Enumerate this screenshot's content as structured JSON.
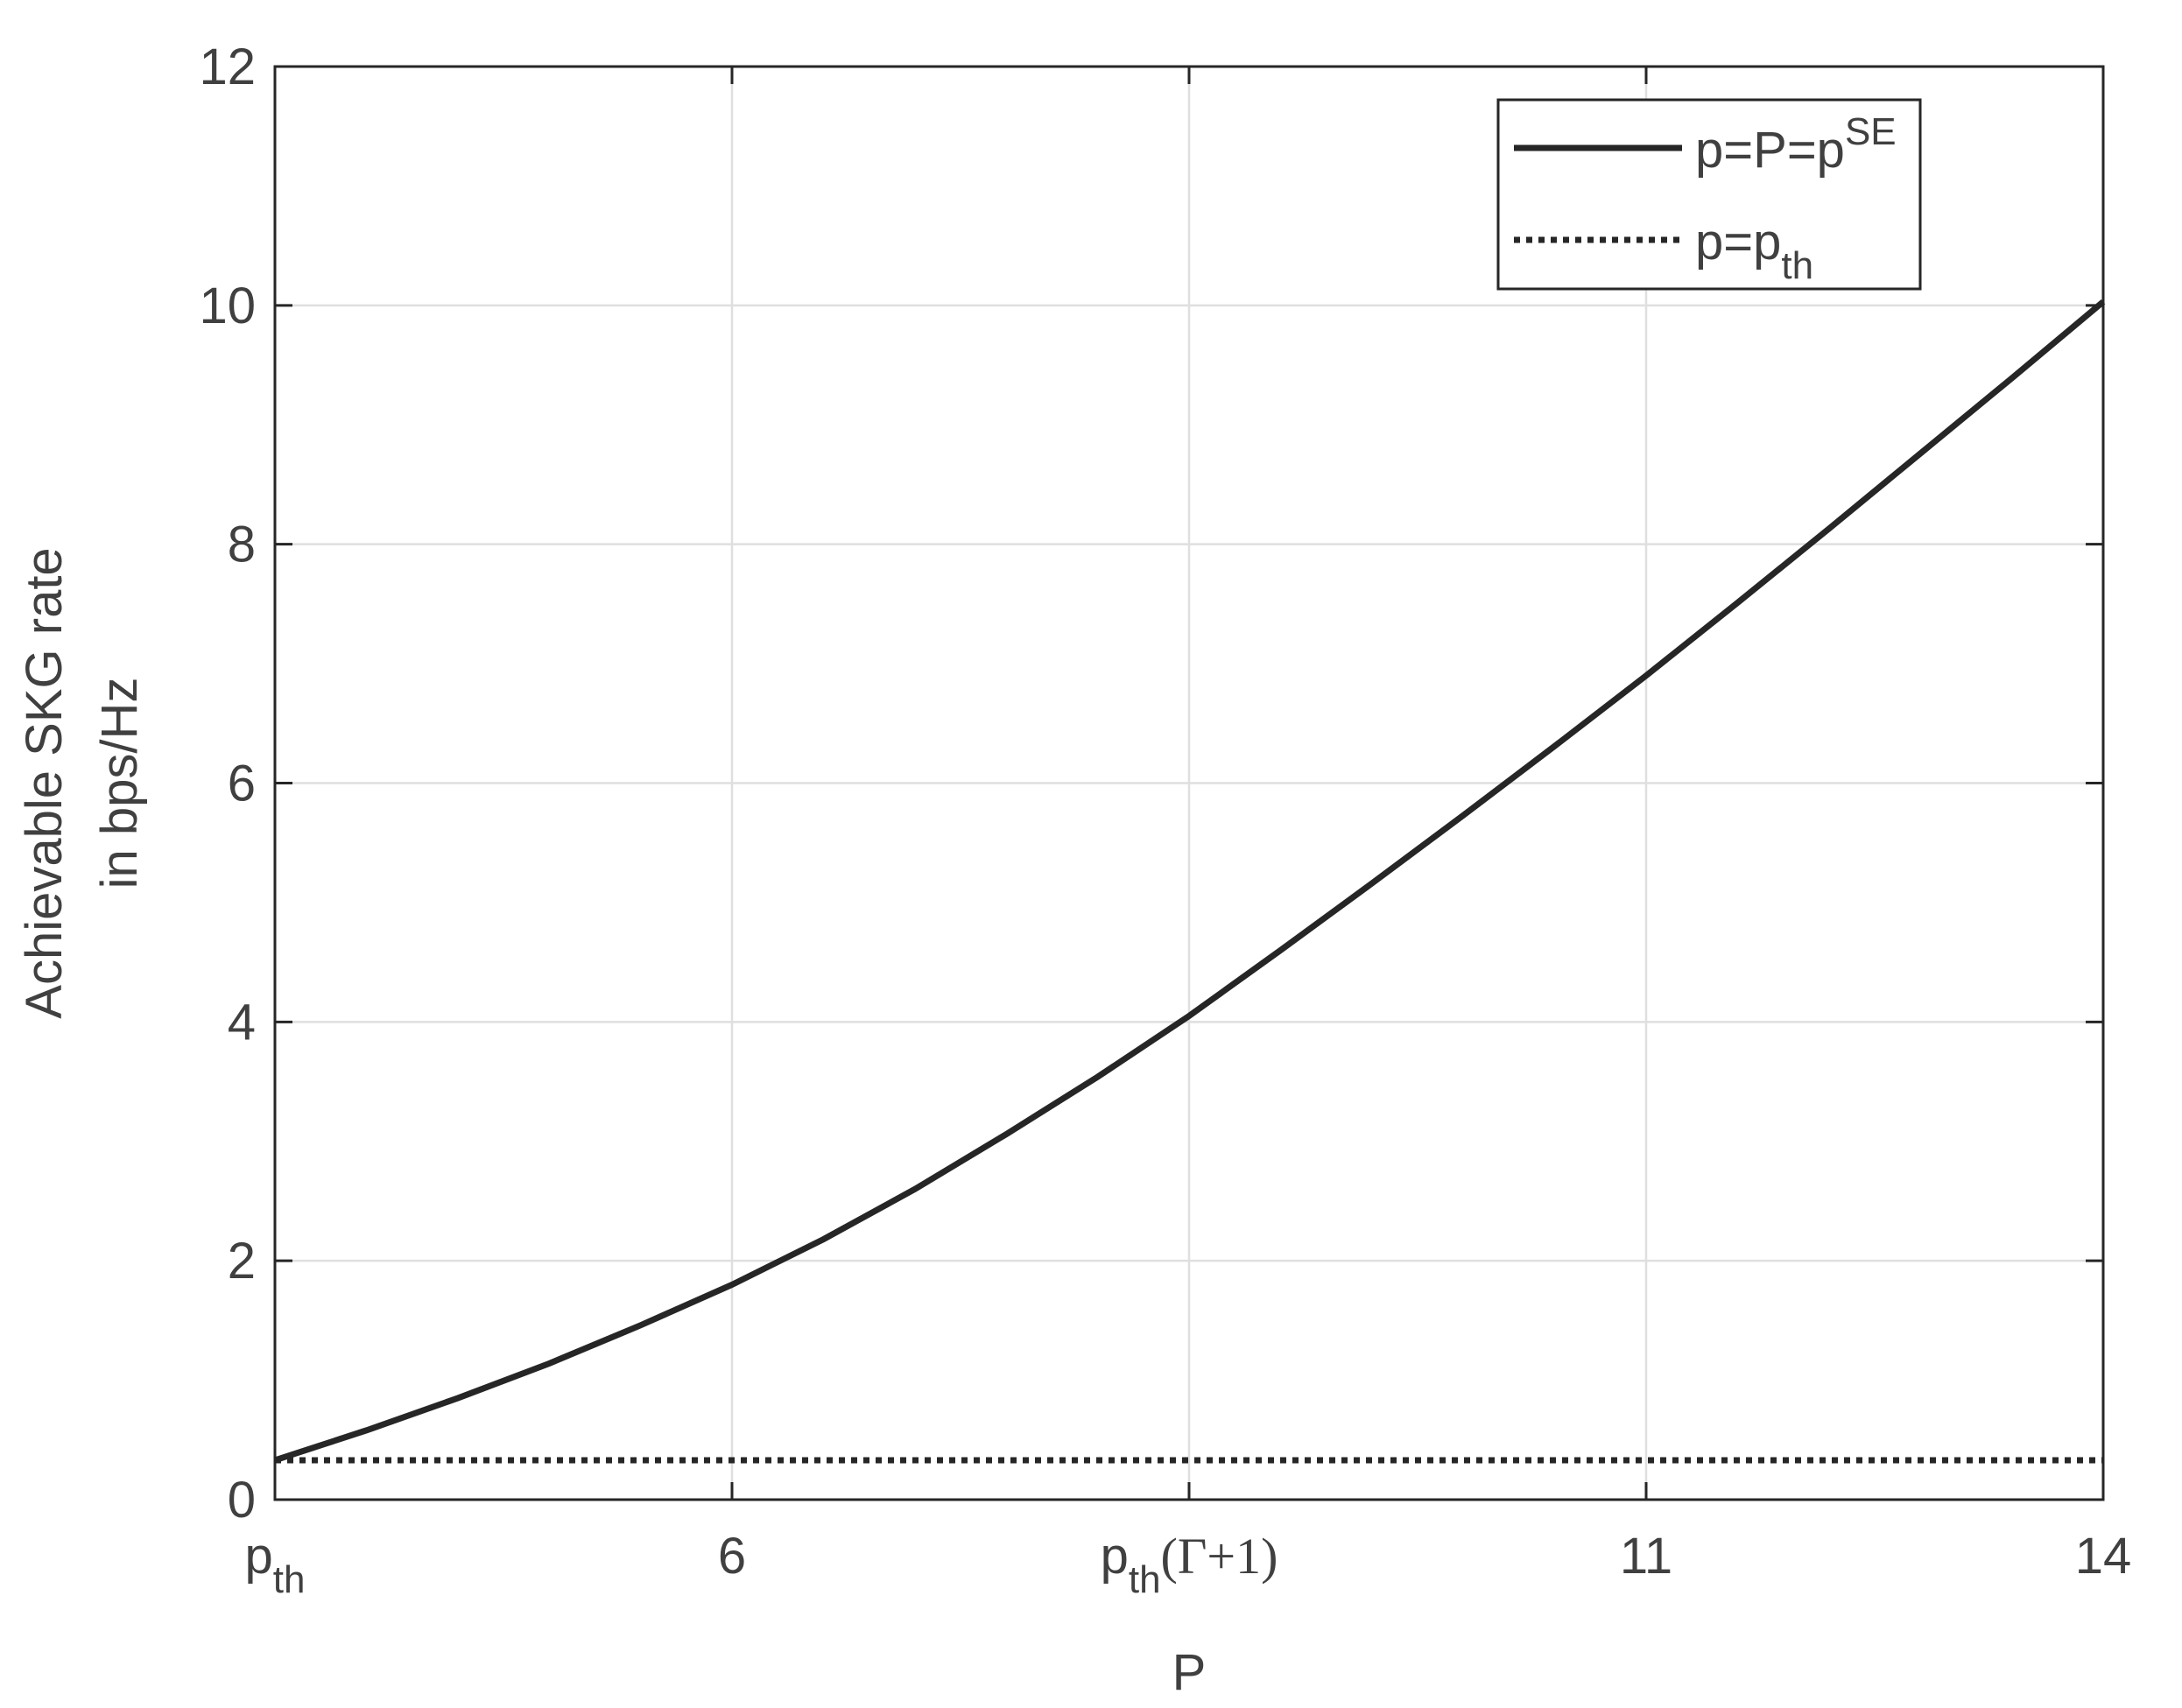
{
  "chart_data": {
    "type": "line",
    "xlabel": "P",
    "ylabel": [
      "Achievable SKG rate",
      "in bps/Hz"
    ],
    "xlim": [
      3.5,
      13.5
    ],
    "ylim": [
      0,
      12
    ],
    "xticks": [
      {
        "value": 3.5,
        "label": [
          "p",
          "th"
        ]
      },
      6,
      {
        "value": 8.5,
        "label": [
          "p",
          "th",
          "(Γ+1)"
        ]
      },
      11,
      {
        "value": 13.5,
        "label": "14"
      }
    ],
    "yticks": [
      0,
      2,
      4,
      6,
      8,
      10,
      12
    ],
    "grid": true,
    "legend": "upper right",
    "series": [
      {
        "name": [
          "p=P=p",
          "SE"
        ],
        "color": "#262626",
        "style": "solid",
        "x": [
          3.5,
          4,
          4.5,
          5,
          5.5,
          6,
          6.5,
          7,
          7.5,
          8,
          8.5,
          9,
          9.5,
          10,
          10.5,
          11,
          11.5,
          12,
          12.5,
          13,
          13.5
        ],
        "values": [
          0.33,
          0.58,
          0.85,
          1.14,
          1.46,
          1.8,
          2.18,
          2.6,
          3.06,
          3.54,
          4.05,
          4.6,
          5.16,
          5.73,
          6.31,
          6.9,
          7.51,
          8.13,
          8.76,
          9.39,
          10.03
        ]
      },
      {
        "name": [
          "p=p",
          "th"
        ],
        "color": "#262626",
        "style": "dotted",
        "x": [
          3.5,
          13.5
        ],
        "values": [
          0.33,
          0.33
        ]
      }
    ]
  }
}
